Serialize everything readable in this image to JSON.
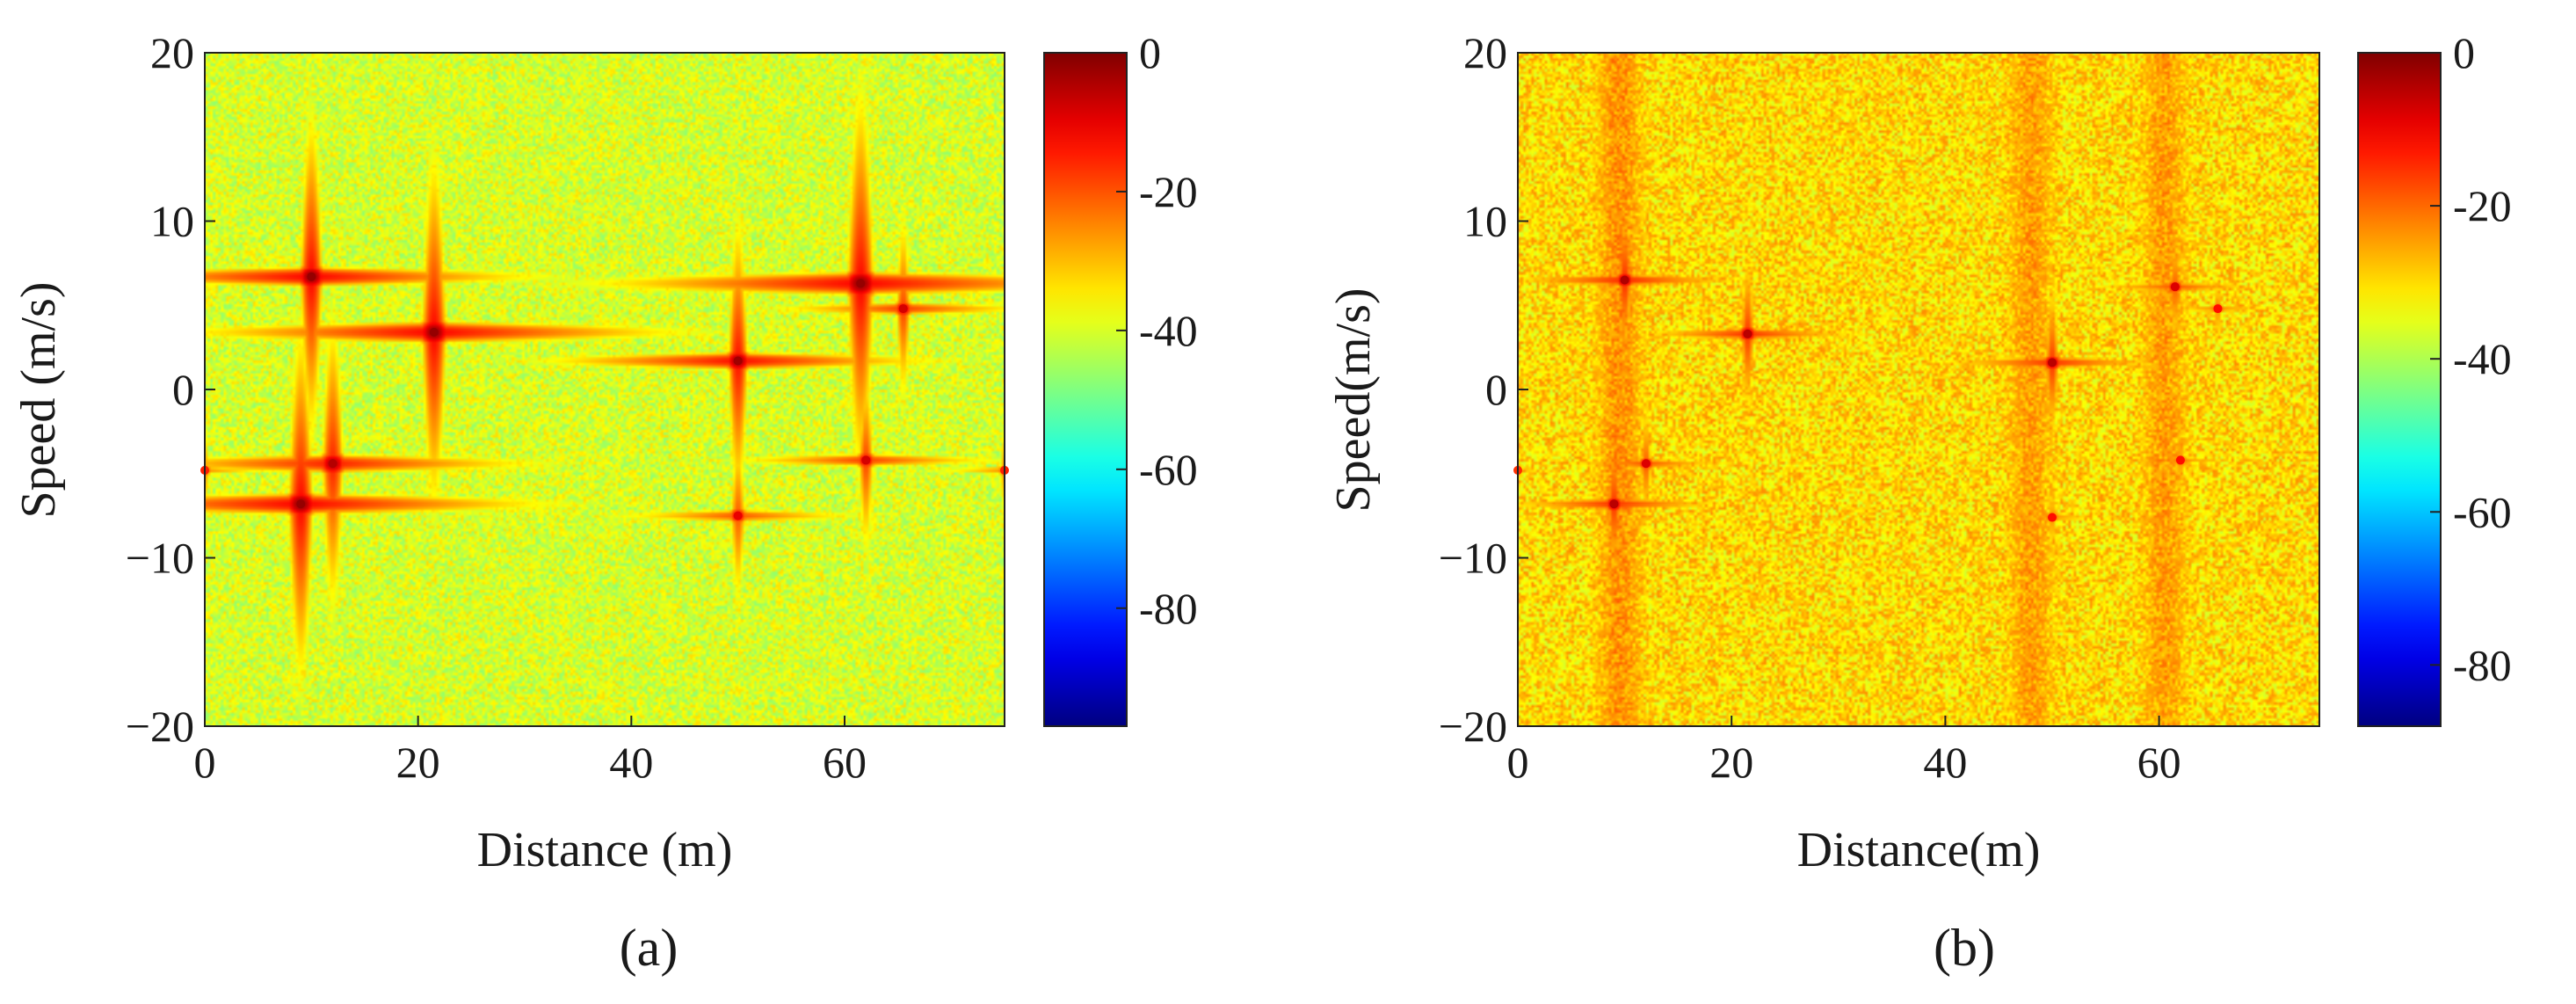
{
  "chart_data": [
    {
      "type": "heatmap",
      "panel_label": "(a)",
      "xlabel": "Distance (m)",
      "ylabel": "Speed (m/s)",
      "xlim": [
        0,
        75
      ],
      "ylim": [
        -20,
        20
      ],
      "x_ticks": [
        0,
        20,
        40,
        60
      ],
      "x_tick_labels": [
        "0",
        "20",
        "40",
        "60"
      ],
      "y_ticks": [
        -20,
        -10,
        0,
        10,
        20
      ],
      "y_tick_labels": [
        "−20",
        "−10",
        "0",
        "10",
        "20"
      ],
      "colorbar": {
        "colormap": "jet",
        "range": [
          -97,
          0
        ],
        "ticks": [
          0,
          -20,
          -40,
          -60,
          -80
        ],
        "tick_labels": [
          "0",
          "-20",
          "-40",
          "-60",
          "-80"
        ]
      },
      "background_level": -40,
      "stripes": [],
      "targets": [
        {
          "x": 10.0,
          "y": 6.7,
          "level": -2,
          "spread": 1.0
        },
        {
          "x": 21.5,
          "y": 3.4,
          "level": -2,
          "spread": 1.1
        },
        {
          "x": 50.0,
          "y": 1.7,
          "level": -3,
          "spread": 0.9
        },
        {
          "x": 61.5,
          "y": 6.3,
          "level": -2,
          "spread": 1.2
        },
        {
          "x": 65.5,
          "y": 4.8,
          "level": -8,
          "spread": 0.7
        },
        {
          "x": 9.0,
          "y": -6.8,
          "level": -2,
          "spread": 1.1
        },
        {
          "x": 12.0,
          "y": -4.4,
          "level": -5,
          "spread": 1.0
        },
        {
          "x": 62.0,
          "y": -4.2,
          "level": -8,
          "spread": 0.7
        },
        {
          "x": 50.0,
          "y": -7.5,
          "level": -10,
          "spread": 0.7
        },
        {
          "x": 0.0,
          "y": -4.8,
          "level": -15,
          "spread": 0.5
        },
        {
          "x": 75.0,
          "y": -4.8,
          "level": -15,
          "spread": 0.5
        }
      ]
    },
    {
      "type": "heatmap",
      "panel_label": "(b)",
      "xlabel": "Distance(m)",
      "ylabel": "Speed(m/s)",
      "xlim": [
        0,
        75
      ],
      "ylim": [
        -20,
        20
      ],
      "x_ticks": [
        0,
        20,
        40,
        60
      ],
      "x_tick_labels": [
        "0",
        "20",
        "40",
        "60"
      ],
      "y_ticks": [
        -20,
        -10,
        0,
        10,
        20
      ],
      "y_tick_labels": [
        "−20",
        "−10",
        "0",
        "10",
        "20"
      ],
      "colorbar": {
        "colormap": "jet",
        "range": [
          -88,
          0
        ],
        "ticks": [
          0,
          -20,
          -40,
          -60,
          -80
        ],
        "tick_labels": [
          "0",
          "-20",
          "-40",
          "-60",
          "-80"
        ]
      },
      "background_level": -30,
      "stripes": [
        {
          "x": 9.5,
          "width": 2.5,
          "level": -24
        },
        {
          "x": 48.0,
          "width": 2.5,
          "level": -25
        },
        {
          "x": 60.5,
          "width": 2.5,
          "level": -25
        }
      ],
      "targets": [
        {
          "x": 10.0,
          "y": 6.5,
          "level": -4,
          "spread": 0.7
        },
        {
          "x": 21.5,
          "y": 3.3,
          "level": -5,
          "spread": 0.7
        },
        {
          "x": 50.0,
          "y": 1.6,
          "level": -5,
          "spread": 0.7
        },
        {
          "x": 61.5,
          "y": 6.1,
          "level": -8,
          "spread": 0.6
        },
        {
          "x": 65.5,
          "y": 4.8,
          "level": -12,
          "spread": 0.5
        },
        {
          "x": 9.0,
          "y": -6.8,
          "level": -5,
          "spread": 0.7
        },
        {
          "x": 12.0,
          "y": -4.4,
          "level": -8,
          "spread": 0.6
        },
        {
          "x": 62.0,
          "y": -4.2,
          "level": -12,
          "spread": 0.5
        },
        {
          "x": 50.0,
          "y": -7.6,
          "level": -12,
          "spread": 0.5
        },
        {
          "x": 0.0,
          "y": -4.8,
          "level": -15,
          "spread": 0.4
        }
      ]
    }
  ]
}
